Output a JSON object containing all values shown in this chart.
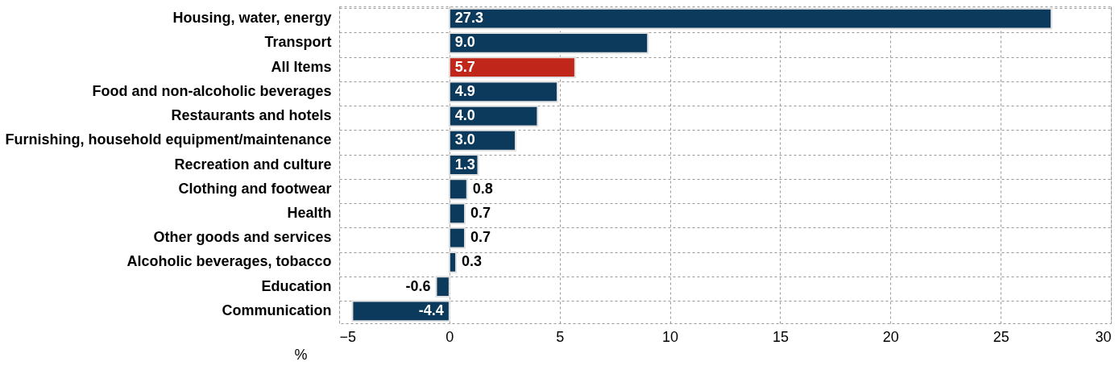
{
  "chart_data": {
    "type": "bar",
    "orientation": "horizontal",
    "categories": [
      "Housing, water, energy",
      "Transport",
      "All Items",
      "Food and non-alcoholic beverages",
      "Restaurants and hotels",
      "Furnishing, household equipment/maintenance",
      "Recreation and culture",
      "Clothing and footwear",
      "Health",
      "Other goods and services",
      "Alcoholic beverages, tobacco",
      "Education",
      "Communication"
    ],
    "values": [
      27.3,
      9.0,
      5.7,
      4.9,
      4.0,
      3.0,
      1.3,
      0.8,
      0.7,
      0.7,
      0.3,
      -0.6,
      -4.4
    ],
    "value_labels": [
      "27.3",
      "9.0",
      "5.7",
      "4.9",
      "4.0",
      "3.0",
      "1.3",
      "0.8",
      "0.7",
      "0.7",
      "0.3",
      "-0.6",
      "-4.4"
    ],
    "colors": [
      "#0b3a5c",
      "#0b3a5c",
      "#c0261a",
      "#0b3a5c",
      "#0b3a5c",
      "#0b3a5c",
      "#0b3a5c",
      "#0b3a5c",
      "#0b3a5c",
      "#0b3a5c",
      "#0b3a5c",
      "#0b3a5c",
      "#0b3a5c"
    ],
    "xlabel": "%",
    "xlim": [
      -5,
      30
    ],
    "xticks": [
      -5,
      0,
      5,
      10,
      15,
      20,
      25,
      30
    ],
    "grid": true
  }
}
